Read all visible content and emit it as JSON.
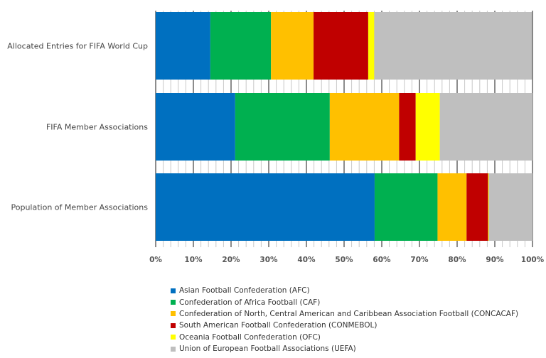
{
  "chart_data": {
    "type": "bar",
    "orientation": "horizontal",
    "stacked": "100%",
    "categories": [
      "Allocated Entries for FIFA World Cup",
      "FIFA Member Associations",
      "Population of Member Associations"
    ],
    "series": [
      {
        "name": "Asian Football Confederation (AFC)",
        "color": "#0070C0",
        "values": [
          14.5,
          21.1,
          58.1
        ]
      },
      {
        "name": "Confederation of Africa Football (CAF)",
        "color": "#00B050",
        "values": [
          16.1,
          25.1,
          16.7
        ]
      },
      {
        "name": "Confederation of North, Central American and Caribbean Association Football (CONCACAF)",
        "color": "#FFC000",
        "values": [
          11.3,
          18.4,
          7.7
        ]
      },
      {
        "name": "South American Football Confederation (CONMEBOL)",
        "color": "#C00000",
        "values": [
          14.5,
          4.4,
          5.7
        ]
      },
      {
        "name": "Oceania Football Confederation (OFC)",
        "color": "#FFFF00",
        "values": [
          1.6,
          6.4,
          0.2
        ]
      },
      {
        "name": "Union of European Football Associations (UEFA)",
        "color": "#BFBFBF",
        "values": [
          41.9,
          24.6,
          11.6
        ]
      }
    ],
    "xlim": [
      0,
      100
    ],
    "xticks": [
      "0%",
      "10%",
      "20%",
      "30%",
      "40%",
      "50%",
      "60%",
      "70%",
      "80%",
      "90%",
      "100%"
    ],
    "grid": true,
    "legend_position": "bottom"
  }
}
